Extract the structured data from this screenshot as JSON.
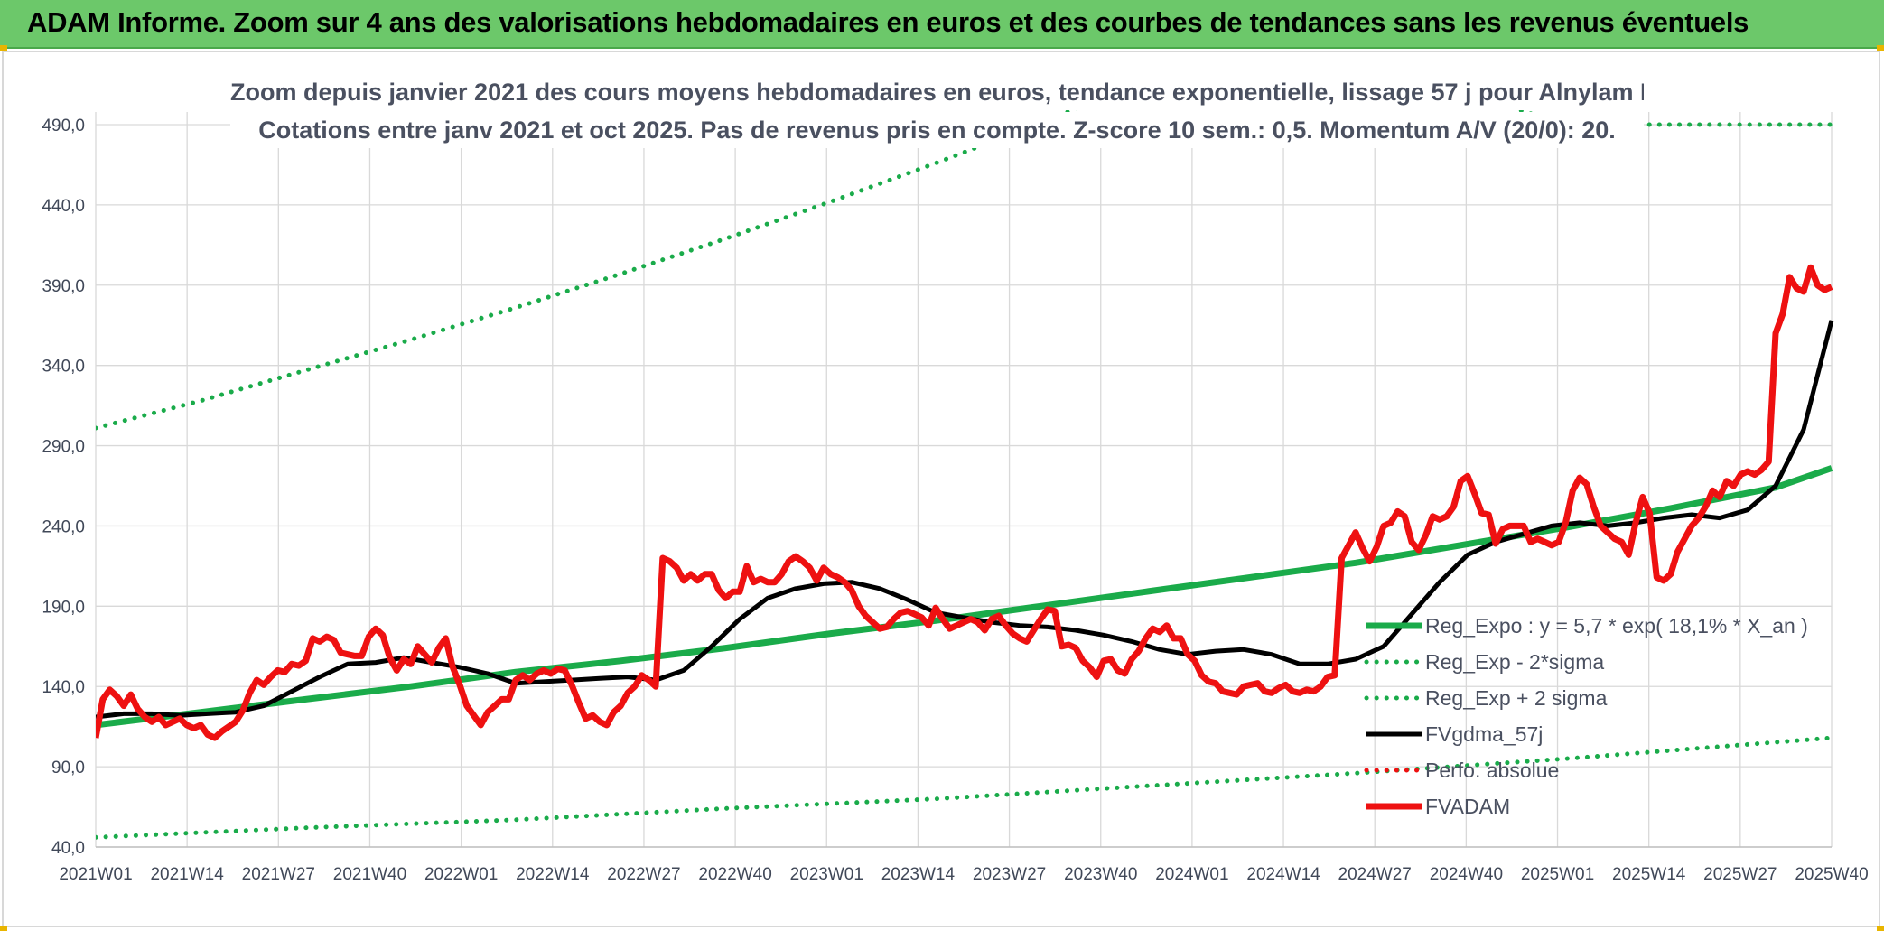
{
  "header": {
    "title": "ADAM Informe. Zoom sur 4 ans des valorisations hebdomadaires en euros et des courbes de tendances sans les revenus éventuels"
  },
  "colors": {
    "header_bg": "#6cc86a",
    "trend": "#1aab4a",
    "price": "#ee1111",
    "smooth": "#000000"
  },
  "chart_data": {
    "type": "line",
    "title_line1": "Zoom depuis janvier 2021 des cours moyens hebdomadaires en euros, tendance exponentielle, lissage 57 j pour Alnylam Pharmaceuticals I",
    "title_line2": "Cotations entre janv 2021 et oct 2025. Pas de revenus pris en compte. Z-score 10 sem.: 0,5. Momentum A/V (20/0): 20.",
    "ylim": [
      40,
      490
    ],
    "yticks": [
      "40,0",
      "90,0",
      "140,0",
      "190,0",
      "240,0",
      "290,0",
      "340,0",
      "390,0",
      "440,0",
      "490,0"
    ],
    "xticks": [
      "2021W01",
      "2021W14",
      "2021W27",
      "2021W40",
      "2022W01",
      "2022W14",
      "2022W27",
      "2022W40",
      "2023W01",
      "2023W14",
      "2023W27",
      "2023W40",
      "2024W01",
      "2024W14",
      "2024W27",
      "2024W40",
      "2025W01",
      "2025W14",
      "2025W27",
      "2025W40"
    ],
    "grid": true,
    "legend_position": "right",
    "series": [
      {
        "name": "Reg_Expo : y = 5,7 * exp( 18,1% *  X_an )",
        "style": "solid-green",
        "x": [
          0,
          15,
          30,
          45,
          60,
          75,
          90,
          105,
          120,
          135,
          150,
          165,
          180,
          195,
          210,
          225,
          240,
          248
        ],
        "values": [
          116,
          124,
          132,
          140,
          149,
          156,
          164,
          173,
          181,
          190,
          199,
          208,
          217,
          228,
          239,
          251,
          264,
          276
        ]
      },
      {
        "name": "Reg_Exp - 2*sigma",
        "style": "dotted-green",
        "x": [
          0,
          30,
          60,
          90,
          120,
          150,
          180,
          210,
          248
        ],
        "values": [
          46,
          52,
          57,
          64,
          70,
          78,
          86,
          95,
          108
        ]
      },
      {
        "name": "Reg_Exp + 2 sigma",
        "style": "dotted-green",
        "x": [
          0,
          15,
          30,
          45,
          60,
          75,
          90,
          105,
          120,
          135,
          150,
          168,
          210,
          248
        ],
        "values": [
          301,
          318,
          337,
          356,
          376,
          397,
          419,
          442,
          466,
          491,
          518,
          548,
          490,
          490
        ]
      },
      {
        "name": "FVgdma_57j",
        "style": "solid-black",
        "x": [
          0,
          4,
          8,
          12,
          16,
          20,
          24,
          28,
          32,
          36,
          40,
          44,
          48,
          52,
          56,
          60,
          64,
          68,
          72,
          76,
          80,
          84,
          88,
          92,
          96,
          100,
          104,
          108,
          112,
          116,
          120,
          124,
          128,
          132,
          136,
          140,
          144,
          148,
          152,
          156,
          160,
          164,
          168,
          172,
          176,
          180,
          184,
          188,
          192,
          196,
          200,
          204,
          208,
          212,
          216,
          220,
          224,
          228,
          232,
          236,
          240,
          244,
          248
        ],
        "values": [
          121,
          123,
          123,
          122,
          123,
          124,
          128,
          137,
          146,
          154,
          155,
          158,
          155,
          152,
          148,
          142,
          143,
          144,
          145,
          146,
          144,
          150,
          165,
          182,
          195,
          201,
          204,
          205,
          201,
          194,
          186,
          183,
          180,
          178,
          177,
          175,
          172,
          168,
          163,
          160,
          162,
          163,
          160,
          154,
          154,
          157,
          165,
          185,
          205,
          222,
          230,
          235,
          240,
          242,
          240,
          242,
          245,
          247,
          245,
          250,
          265,
          300,
          368
        ]
      },
      {
        "name": "Perfo. absolue",
        "style": "dotted-red",
        "x": [],
        "values": []
      },
      {
        "name": "FVADAM",
        "style": "solid-red",
        "x": [
          0,
          1,
          2,
          3,
          4,
          5,
          6,
          7,
          8,
          9,
          10,
          11,
          12,
          13,
          14,
          15,
          16,
          17,
          18,
          19,
          20,
          21,
          22,
          23,
          24,
          25,
          26,
          27,
          28,
          29,
          30,
          31,
          32,
          33,
          34,
          35,
          36,
          37,
          38,
          39,
          40,
          41,
          42,
          43,
          44,
          45,
          46,
          47,
          48,
          49,
          50,
          51,
          52,
          53,
          54,
          55,
          56,
          57,
          58,
          59,
          60,
          61,
          62,
          63,
          64,
          65,
          66,
          67,
          68,
          69,
          70,
          71,
          72,
          73,
          74,
          75,
          76,
          77,
          78,
          79,
          80,
          81,
          82,
          83,
          84,
          85,
          86,
          87,
          88,
          89,
          90,
          91,
          92,
          93,
          94,
          95,
          96,
          97,
          98,
          99,
          100,
          101,
          102,
          103,
          104,
          105,
          106,
          107,
          108,
          109,
          110,
          111,
          112,
          113,
          114,
          115,
          116,
          117,
          118,
          119,
          120,
          121,
          122,
          123,
          124,
          125,
          126,
          127,
          128,
          129,
          130,
          131,
          132,
          133,
          134,
          135,
          136,
          137,
          138,
          139,
          140,
          141,
          142,
          143,
          144,
          145,
          146,
          147,
          148,
          149,
          150,
          151,
          152,
          153,
          154,
          155,
          156,
          157,
          158,
          159,
          160,
          161,
          162,
          163,
          164,
          165,
          166,
          167,
          168,
          169,
          170,
          171,
          172,
          173,
          174,
          175,
          176,
          177,
          178,
          179,
          180,
          181,
          182,
          183,
          184,
          185,
          186,
          187,
          188,
          189,
          190,
          191,
          192,
          193,
          194,
          195,
          196,
          197,
          198,
          199,
          200,
          201,
          202,
          203,
          204,
          205,
          206,
          207,
          208,
          209,
          210,
          211,
          212,
          213,
          214,
          215,
          216,
          217,
          218,
          219,
          220,
          221,
          222,
          223,
          224,
          225,
          226,
          227,
          228,
          229,
          230,
          231,
          232,
          233,
          234,
          235,
          236,
          237,
          238,
          239,
          240,
          241,
          242,
          243,
          244,
          245,
          246,
          247,
          248
        ],
        "values": [
          108,
          132,
          138,
          134,
          128,
          135,
          126,
          121,
          118,
          121,
          116,
          118,
          120,
          116,
          114,
          116,
          110,
          108,
          112,
          115,
          118,
          125,
          136,
          144,
          141,
          146,
          150,
          149,
          154,
          153,
          156,
          170,
          168,
          171,
          169,
          161,
          160,
          159,
          159,
          171,
          176,
          172,
          158,
          150,
          157,
          154,
          165,
          160,
          155,
          164,
          170,
          152,
          141,
          128,
          122,
          116,
          124,
          128,
          132,
          132,
          144,
          147,
          144,
          148,
          150,
          148,
          151,
          150,
          141,
          130,
          120,
          122,
          118,
          116,
          124,
          128,
          136,
          140,
          147,
          144,
          140,
          220,
          218,
          214,
          206,
          210,
          206,
          210,
          210,
          200,
          195,
          199,
          199,
          215,
          205,
          207,
          205,
          205,
          210,
          218,
          221,
          218,
          214,
          206,
          214,
          210,
          208,
          205,
          200,
          190,
          184,
          180,
          176,
          177,
          182,
          186,
          187,
          185,
          183,
          178,
          189,
          182,
          176,
          178,
          180,
          182,
          180,
          175,
          182,
          184,
          178,
          173,
          170,
          168,
          175,
          182,
          188,
          187,
          165,
          166,
          164,
          156,
          152,
          146,
          156,
          157,
          150,
          148,
          157,
          162,
          170,
          176,
          174,
          178,
          170,
          170,
          160,
          156,
          147,
          143,
          142,
          137,
          136,
          135,
          140,
          141,
          142,
          137,
          136,
          139,
          141,
          137,
          136,
          138,
          137,
          140,
          146,
          147,
          220,
          228,
          236,
          226,
          218,
          227,
          240,
          242,
          249,
          246,
          230,
          225,
          234,
          246,
          244,
          246,
          252,
          268,
          271,
          260,
          248,
          247,
          229,
          238,
          240,
          240,
          240,
          230,
          232,
          230,
          228,
          230,
          242,
          262,
          270,
          266,
          252,
          240,
          236,
          232,
          230,
          222,
          242,
          258,
          248,
          208,
          206,
          210,
          224,
          232,
          240,
          245,
          252,
          262,
          258,
          268,
          265,
          272,
          274,
          272,
          275,
          280,
          360,
          372,
          395,
          388,
          386,
          401,
          390,
          387,
          389
        ]
      }
    ]
  }
}
